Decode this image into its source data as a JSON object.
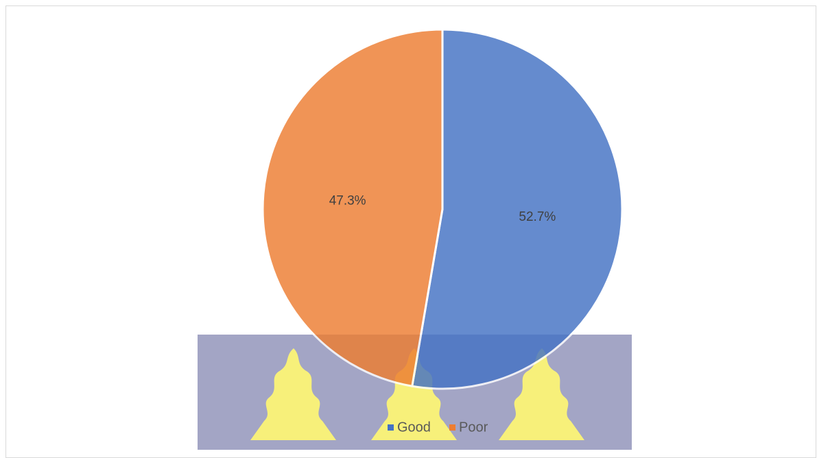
{
  "chart_data": {
    "type": "pie",
    "series": [
      {
        "name": "Good",
        "value": 52.7,
        "label": "52.7%",
        "color": "#4472C4"
      },
      {
        "name": "Poor",
        "value": 47.3,
        "label": "47.3%",
        "color": "#ED7D31"
      }
    ],
    "start_angle_deg": 0,
    "direction": "clockwise",
    "legend": {
      "position": "bottom",
      "items": [
        "Good",
        "Poor"
      ]
    }
  },
  "watermark": {
    "kind": "university crest (three yellow flames on blue-grey)",
    "colors": [
      "#7f82ae",
      "#f7f07a"
    ]
  }
}
